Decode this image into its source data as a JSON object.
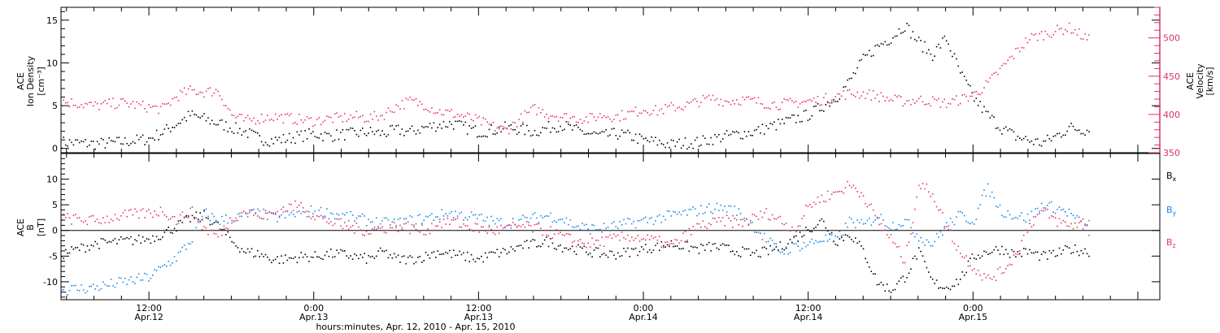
{
  "figure": {
    "xlabel": "hours:minutes, Apr. 12, 2010 - Apr. 15, 2010",
    "x_ticks": [
      {
        "t": 12,
        "line1": "12:00",
        "line2": "Apr.12"
      },
      {
        "t": 24,
        "line1": "0:00",
        "line2": "Apr.13"
      },
      {
        "t": 36,
        "line1": "12:00",
        "line2": "Apr.13"
      },
      {
        "t": 48,
        "line1": "0:00",
        "line2": "Apr.14"
      },
      {
        "t": 60,
        "line1": "12:00",
        "line2": "Apr.14"
      },
      {
        "t": 72,
        "line1": "0:00",
        "line2": "Apr.15"
      }
    ],
    "colors": {
      "black": "#000000",
      "pink": "#e8335e",
      "blue": "#1a86e6",
      "axis": "#000000",
      "pink_axis": "#d6336c"
    }
  },
  "chart_data": [
    {
      "type": "scatter",
      "panel": "plasma",
      "ylabel_left": [
        "ACE",
        "Ion Density",
        "[cm⁻³]"
      ],
      "ylabel_right": [
        "ACE",
        "Velocity",
        "[km/s]"
      ],
      "ylim_left": [
        -0.5,
        16.5
      ],
      "yticks_left": [
        0,
        5,
        10,
        15
      ],
      "ylim_right": [
        350,
        540
      ],
      "yticks_right": [
        350,
        400,
        450,
        500
      ],
      "x_unit": "hours from 2010-04-12 00:00",
      "xlim": [
        5.6,
        85.6
      ],
      "series": [
        {
          "name": "Ion Density",
          "axis": "left",
          "color": "#000000",
          "x": [
            5.6,
            8,
            10,
            11,
            12,
            13,
            14,
            15,
            16,
            17,
            18,
            19,
            20,
            21,
            22,
            23,
            24,
            25,
            26,
            27,
            28,
            29,
            30,
            31,
            32,
            33,
            34,
            35,
            36,
            37,
            38,
            39,
            40,
            41,
            42,
            43,
            44,
            45,
            46,
            47,
            48,
            49,
            50,
            51,
            52,
            53,
            54,
            55,
            56,
            57,
            58,
            59,
            60,
            61,
            62,
            63,
            64,
            65,
            66,
            67,
            68,
            69,
            70,
            71,
            72,
            73,
            74,
            75,
            76,
            77,
            78,
            79,
            80.4
          ],
          "y": [
            0.8,
            0.6,
            0.8,
            1.0,
            1.2,
            2.0,
            3.0,
            4.0,
            3.5,
            3.0,
            2.5,
            2.0,
            1.2,
            1.0,
            1.2,
            1.5,
            1.8,
            1.5,
            1.7,
            1.8,
            2.0,
            1.8,
            2.2,
            2.0,
            2.5,
            2.8,
            3.0,
            2.5,
            2.0,
            2.2,
            2.5,
            2.3,
            2.0,
            2.5,
            2.8,
            2.2,
            1.8,
            1.5,
            1.8,
            1.5,
            1.0,
            0.8,
            0.5,
            0.7,
            0.8,
            1.2,
            1.5,
            1.8,
            2.0,
            2.5,
            3.0,
            3.5,
            4.0,
            5.0,
            6.0,
            8.0,
            10.5,
            12.0,
            13.0,
            14.5,
            12.5,
            11.0,
            13.0,
            9.0,
            6.0,
            4.0,
            2.5,
            1.5,
            1.0,
            0.7,
            1.5,
            2.5,
            2.2
          ]
        },
        {
          "name": "Velocity",
          "axis": "right",
          "color": "#e8335e",
          "x": [
            5.6,
            8,
            10,
            12,
            13,
            14,
            15,
            16,
            17,
            18,
            19,
            20,
            21,
            22,
            23,
            24,
            25,
            26,
            27,
            28,
            29,
            30,
            31,
            32,
            33,
            34,
            35,
            36,
            37,
            38,
            39,
            40,
            41,
            42,
            43,
            44,
            45,
            46,
            47,
            48,
            49,
            50,
            51,
            52,
            53,
            54,
            55,
            56,
            57,
            58,
            59,
            60,
            61,
            62,
            63,
            64,
            65,
            66,
            67,
            68,
            69,
            70,
            71,
            72,
            73,
            74,
            75,
            76,
            77,
            78,
            79,
            80.4
          ],
          "y": [
            418,
            412,
            416,
            410,
            408,
            425,
            432,
            430,
            432,
            400,
            392,
            396,
            398,
            396,
            394,
            392,
            395,
            396,
            398,
            396,
            400,
            412,
            418,
            414,
            405,
            402,
            398,
            392,
            385,
            380,
            395,
            408,
            402,
            398,
            396,
            395,
            400,
            398,
            402,
            408,
            405,
            410,
            412,
            418,
            422,
            418,
            420,
            418,
            415,
            414,
            416,
            418,
            420,
            425,
            428,
            428,
            425,
            420,
            418,
            420,
            418,
            415,
            420,
            426,
            440,
            460,
            480,
            500,
            505,
            510,
            514,
            498
          ]
        }
      ]
    },
    {
      "type": "scatter",
      "panel": "imf",
      "ylabel_left": [
        "ACE",
        "B",
        "[nT]"
      ],
      "ylim_left": [
        -13.5,
        15
      ],
      "yticks_left": [
        -10,
        -5,
        0,
        5,
        10
      ],
      "zero_line": true,
      "x_unit": "hours from 2010-04-12 00:00",
      "xlim": [
        5.6,
        85.6
      ],
      "legend_position": "right",
      "series": [
        {
          "name": "Bx",
          "label_main": "B",
          "label_sub": "x",
          "color": "#000000",
          "x": [
            5.6,
            8,
            10,
            12,
            13,
            14,
            15,
            16,
            17,
            18,
            19,
            20,
            21,
            22,
            23,
            24,
            25,
            26,
            27,
            28,
            29,
            30,
            31,
            32,
            33,
            34,
            35,
            36,
            37,
            38,
            39,
            40,
            41,
            42,
            43,
            44,
            45,
            46,
            47,
            48,
            49,
            50,
            51,
            52,
            53,
            54,
            55,
            56,
            57,
            58,
            59,
            60,
            61,
            62,
            63,
            64,
            65,
            66,
            67,
            68,
            69,
            70,
            71,
            72,
            73,
            74,
            75,
            76,
            77,
            78,
            79,
            80.4
          ],
          "y": [
            -4.5,
            -2.5,
            -2.0,
            -1.5,
            -0.5,
            1.0,
            2.5,
            3.0,
            1.0,
            -2.0,
            -4.0,
            -4.5,
            -5.5,
            -5.5,
            -5.0,
            -5.0,
            -4.5,
            -4.5,
            -5.0,
            -5.5,
            -4.0,
            -5.5,
            -5.5,
            -5.0,
            -4.0,
            -4.5,
            -5.0,
            -5.5,
            -4.5,
            -4.0,
            -3.0,
            -2.5,
            -2.0,
            -3.0,
            -3.5,
            -4.0,
            -4.5,
            -4.5,
            -4.0,
            -3.5,
            -3.0,
            -2.5,
            -3.0,
            -3.5,
            -3.0,
            -3.5,
            -4.0,
            -4.5,
            -4.0,
            -3.0,
            -1.5,
            0.5,
            2.0,
            -2.0,
            -0.5,
            -4.0,
            -10.0,
            -11.5,
            -9.0,
            -4.0,
            -10.0,
            -11.0,
            -9.5,
            -5.0,
            -4.0,
            -3.5,
            -4.5,
            -4.0,
            -5.0,
            -4.5,
            -3.5,
            -4.0
          ]
        },
        {
          "name": "By",
          "label_main": "B",
          "label_sub": "y",
          "color": "#1a86e6",
          "x": [
            5.6,
            8,
            10,
            12,
            13,
            14,
            15,
            16,
            17,
            18,
            19,
            20,
            21,
            22,
            23,
            24,
            25,
            26,
            27,
            28,
            29,
            30,
            31,
            32,
            33,
            34,
            35,
            36,
            37,
            38,
            39,
            40,
            41,
            42,
            43,
            44,
            45,
            46,
            47,
            48,
            49,
            50,
            51,
            52,
            53,
            54,
            55,
            56,
            57,
            58,
            59,
            60,
            61,
            62,
            63,
            64,
            65,
            66,
            67,
            68,
            69,
            70,
            71,
            72,
            73,
            74,
            75,
            76,
            77,
            78,
            79,
            80.4
          ],
          "y": [
            -11.5,
            -11.0,
            -10.0,
            -9.0,
            -7.0,
            -5.0,
            -2.0,
            3.5,
            2.0,
            2.5,
            3.0,
            3.5,
            2.5,
            3.0,
            3.5,
            4.0,
            3.5,
            3.0,
            2.5,
            2.0,
            1.5,
            1.5,
            2.0,
            2.5,
            3.0,
            3.5,
            3.0,
            2.5,
            1.8,
            1.5,
            2.0,
            2.5,
            3.0,
            2.5,
            1.0,
            0.5,
            0.5,
            1.0,
            1.5,
            2.0,
            2.5,
            3.0,
            3.5,
            4.0,
            4.5,
            4.5,
            3.5,
            1.0,
            -2.0,
            -4.0,
            -3.0,
            -2.5,
            -1.5,
            -2.0,
            2.0,
            1.0,
            3.0,
            1.0,
            2.0,
            -1.0,
            -2.5,
            1.0,
            3.0,
            2.0,
            8.5,
            4.0,
            3.0,
            2.5,
            5.0,
            4.5,
            3.5,
            0.0
          ]
        },
        {
          "name": "Bz",
          "label_main": "B",
          "label_sub": "z",
          "color": "#e8335e",
          "x": [
            5.6,
            8,
            10,
            12,
            13,
            14,
            15,
            16,
            17,
            18,
            19,
            20,
            21,
            22,
            23,
            24,
            25,
            26,
            27,
            28,
            29,
            30,
            31,
            32,
            33,
            34,
            35,
            36,
            37,
            38,
            39,
            40,
            41,
            42,
            43,
            44,
            45,
            46,
            47,
            48,
            49,
            50,
            51,
            52,
            53,
            54,
            55,
            56,
            57,
            58,
            59,
            60,
            61,
            62,
            63,
            64,
            65,
            66,
            67,
            68,
            69,
            70,
            71,
            72,
            73,
            74,
            75,
            76,
            77,
            78,
            79,
            80.4
          ],
          "y": [
            2.5,
            2.0,
            3.0,
            3.5,
            4.0,
            2.0,
            4.0,
            0.5,
            -1.0,
            2.5,
            4.0,
            3.0,
            3.5,
            4.5,
            5.0,
            3.0,
            2.0,
            1.0,
            0.5,
            0.0,
            0.5,
            1.0,
            0.5,
            0.0,
            1.5,
            2.0,
            1.0,
            0.5,
            0.0,
            0.5,
            1.0,
            0.5,
            0.0,
            -1.0,
            -2.0,
            -2.5,
            -2.0,
            -1.5,
            -1.0,
            -1.5,
            -2.0,
            -3.0,
            -1.0,
            1.0,
            1.5,
            2.0,
            1.5,
            2.5,
            3.5,
            2.0,
            0.0,
            5.0,
            6.5,
            7.5,
            9.0,
            7.0,
            2.0,
            -1.5,
            -6.0,
            9.0,
            7.5,
            1.0,
            -4.0,
            -7.0,
            -9.5,
            -8.0,
            -5.0,
            1.0,
            4.0,
            2.0,
            1.0,
            2.0
          ]
        }
      ]
    }
  ]
}
